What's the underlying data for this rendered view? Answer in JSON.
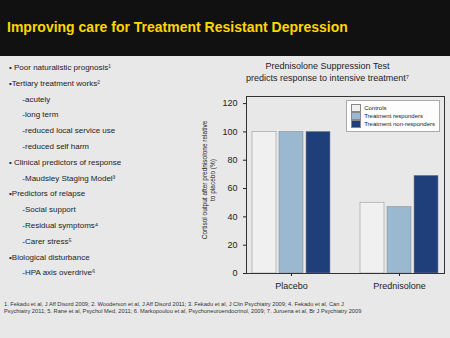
{
  "chart_data": {
    "type": "bar",
    "title": "Improving care for Treatment Resistant Depression",
    "subtitle": [
      "Prednisolone Suppression Test",
      "predicts response to intensive treatment⁷"
    ],
    "annotations": [
      "• Poor naturalistic prognosis¹",
      "•Tertiary treatment works²",
      "      -acutely",
      "      -long term",
      "      -reduced local service use",
      "      -reduced self harm",
      "• Clinical predictors of response",
      "      -Maudsley Staging Model³",
      "•Predictors of relapse",
      "      -Social support",
      "      -Residual symptoms⁴",
      "      -Carer stress⁵",
      "•Biological disturbance",
      "      -HPA axis overdrive⁶"
    ],
    "caption": "1. Fekadu et al, J Aff Disord 2009; 2. Wooderson et al, J Aff Disord 2011; 3. Fekadu et al, J Clin Psychiatry 2009; 4. Fekadu et al, Can J\nPsychiatry 2011; 5. Rane et al, Psychol Med, 2011; 6. Markopoulou et al, Psychoneuroendocrinol, 2009; 7. Juruena et al, Br J Psychiatry 2009",
    "categories": [
      "Placebo",
      "Prednisolone"
    ],
    "series": [
      {
        "name": "Controls",
        "color": "#f0f0f0",
        "values": [
          100,
          50
        ]
      },
      {
        "name": "Treatment responders",
        "color": "#9ab8d0",
        "values": [
          100,
          47
        ]
      },
      {
        "name": "Treatment non-responders",
        "color": "#1e3f7a",
        "values": [
          100,
          69
        ]
      }
    ],
    "ylabel": "Cortisol output after prednisolone relative\nto placebo (%)",
    "ylim": [
      0,
      125
    ],
    "yticks": [
      0,
      20,
      40,
      60,
      80,
      100,
      120
    ],
    "grid": false,
    "legend": "upper right"
  }
}
